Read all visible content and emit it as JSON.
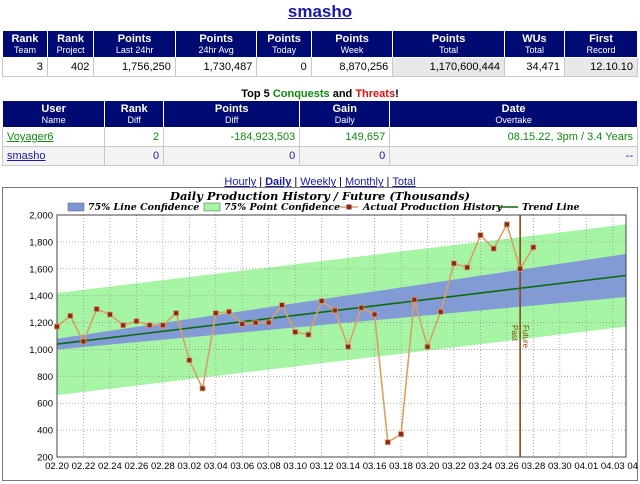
{
  "title": "smasho",
  "stats": {
    "headers": [
      {
        "main": "Rank",
        "sub": "Team"
      },
      {
        "main": "Rank",
        "sub": "Project"
      },
      {
        "main": "Points",
        "sub": "Last 24hr"
      },
      {
        "main": "Points",
        "sub": "24hr Avg"
      },
      {
        "main": "Points",
        "sub": "Today"
      },
      {
        "main": "Points",
        "sub": "Week"
      },
      {
        "main": "Points",
        "sub": "Total"
      },
      {
        "main": "WUs",
        "sub": "Total"
      },
      {
        "main": "First",
        "sub": "Record"
      }
    ],
    "values": [
      "3",
      "402",
      "1,756,250",
      "1,730,487",
      "0",
      "8,870,256",
      "1,170,600,444",
      "34,471",
      "12.10.10"
    ]
  },
  "top5": {
    "prefix": "Top 5 ",
    "conquests": "Conquests",
    "and": " and ",
    "threats": "Threats",
    "suffix": "!"
  },
  "rivals": {
    "headers": [
      {
        "main": "User",
        "sub": "Name"
      },
      {
        "main": "Rank",
        "sub": "Diff"
      },
      {
        "main": "Points",
        "sub": "Diff"
      },
      {
        "main": "Gain",
        "sub": "Daily"
      },
      {
        "main": "Date",
        "sub": "Overtake"
      }
    ],
    "rows": [
      {
        "name": "Voyager6",
        "rank_diff": "2",
        "points_diff": "-184,923,503",
        "gain": "149,657",
        "overtake": "08.15.22, 3pm / 3.4 Years"
      },
      {
        "name": "smasho",
        "rank_diff": "0",
        "points_diff": "0",
        "gain": "0",
        "overtake": "--"
      }
    ]
  },
  "tabs": {
    "hourly": "Hourly",
    "daily": "Daily",
    "weekly": "Weekly",
    "monthly": "Monthly",
    "total": "Total",
    "sep": "|"
  },
  "chart_data": {
    "type": "line",
    "title": "Daily Production History / Future (Thousands)",
    "ylim": [
      200,
      2000
    ],
    "yticks": [
      "200",
      "400",
      "600",
      "800",
      "1,000",
      "1,200",
      "1,400",
      "1,600",
      "1,800",
      "2,000"
    ],
    "xticks": [
      "02.20",
      "02.22",
      "02.24",
      "02.26",
      "02.28",
      "03.02",
      "03.04",
      "03.06",
      "03.08",
      "03.10",
      "03.12",
      "03.14",
      "03.16",
      "03.18",
      "03.20",
      "03.22",
      "03.24",
      "03.26",
      "03.28",
      "03.30",
      "04.01",
      "04.03",
      "04.05"
    ],
    "legend": [
      "75% Line Confidence",
      "75% Point Confidence",
      "Actual Production History",
      "Trend Line"
    ],
    "past_label": "Past",
    "future_label": "Future",
    "today_index": 35,
    "series": [
      {
        "name": "Actual Production History",
        "values": [
          1170,
          1250,
          1060,
          1300,
          1260,
          1180,
          1210,
          1180,
          1180,
          1270,
          920,
          710,
          1270,
          1280,
          1190,
          1200,
          1200,
          1330,
          1130,
          1110,
          1360,
          1290,
          1020,
          1310,
          1260,
          310,
          370,
          1370,
          1020,
          1280,
          1640,
          1610,
          1850,
          1750,
          1930,
          1600,
          1760
        ]
      }
    ],
    "trend": {
      "start": 1040,
      "end": 1550,
      "days": 43
    },
    "line_conf": {
      "start_halfwidth": 40,
      "end_halfwidth": 160
    },
    "point_conf": {
      "halfwidth": 380
    },
    "colors": {
      "line_conf": "#7f96d8",
      "point_conf": "#a5f5a5",
      "actual": "#d9a066",
      "trend": "#0b6b0b",
      "today": "#8a4a12"
    }
  }
}
